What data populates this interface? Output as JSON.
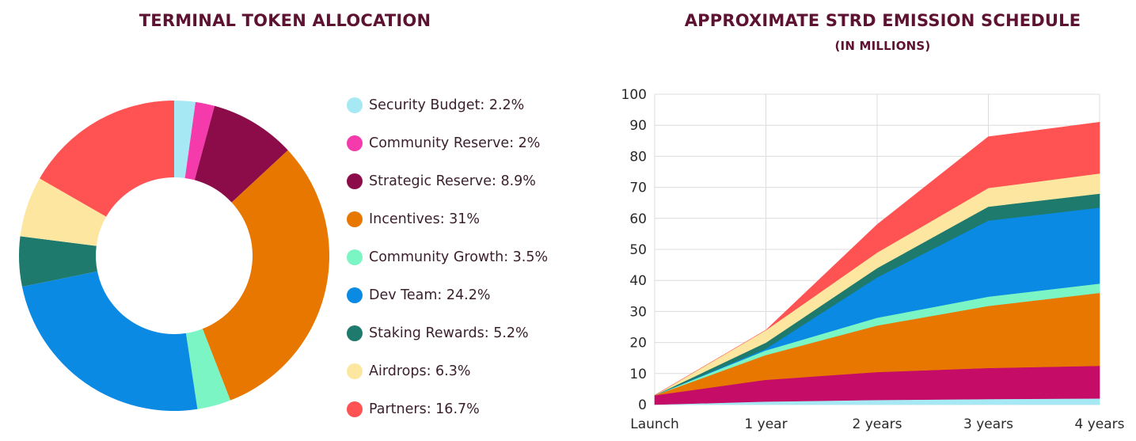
{
  "donut_title": "TERMINAL TOKEN ALLOCATION",
  "area_title": "APPROXIMATE STRD EMISSION SCHEDULE",
  "area_subtitle": "(IN MILLIONS)",
  "legend": [
    {
      "label": "Security Budget: 2.2%",
      "color": "#a6e9f5"
    },
    {
      "label": "Community Reserve: 2%",
      "color": "#f53bab"
    },
    {
      "label": "Strategic Reserve: 8.9%",
      "color": "#8c0c4a"
    },
    {
      "label": "Incentives: 31%",
      "color": "#e87700"
    },
    {
      "label": "Community Growth: 3.5%",
      "color": "#7cf5c4"
    },
    {
      "label": "Dev Team: 24.2%",
      "color": "#0a8ae3"
    },
    {
      "label": "Staking Rewards: 5.2%",
      "color": "#1f7a6e"
    },
    {
      "label": "Airdrops: 6.3%",
      "color": "#fde7a0"
    },
    {
      "label": "Partners: 16.7%",
      "color": "#ff5252"
    }
  ],
  "chart_data": [
    {
      "type": "pie",
      "title": "TERMINAL TOKEN ALLOCATION",
      "slices": [
        {
          "name": "Security Budget",
          "value": 2.2,
          "color": "#a6e9f5"
        },
        {
          "name": "Community Reserve",
          "value": 2,
          "color": "#f53bab"
        },
        {
          "name": "Strategic Reserve",
          "value": 8.9,
          "color": "#8c0c4a"
        },
        {
          "name": "Incentives",
          "value": 31,
          "color": "#e87700"
        },
        {
          "name": "Community Growth",
          "value": 3.5,
          "color": "#7cf5c4"
        },
        {
          "name": "Dev Team",
          "value": 24.2,
          "color": "#0a8ae3"
        },
        {
          "name": "Staking Rewards",
          "value": 5.2,
          "color": "#1f7a6e"
        },
        {
          "name": "Airdrops",
          "value": 6.3,
          "color": "#fde7a0"
        },
        {
          "name": "Partners",
          "value": 16.7,
          "color": "#ff5252"
        }
      ]
    },
    {
      "type": "area",
      "stacked": true,
      "title": "APPROXIMATE STRD EMISSION SCHEDULE",
      "subtitle": "(IN MILLIONS)",
      "categories": [
        "Launch",
        "1 year",
        "2 years",
        "3 years",
        "4 years"
      ],
      "yticks": [
        0,
        10,
        20,
        30,
        40,
        50,
        60,
        70,
        80,
        90,
        100
      ],
      "ylim": [
        0,
        100
      ],
      "grid": true,
      "series": [
        {
          "name": "Security Budget",
          "color": "#a6e9f5",
          "values": [
            0,
            1,
            1.5,
            1.8,
            2
          ]
        },
        {
          "name": "Strategic Reserve",
          "color": "#c50c66",
          "values": [
            3,
            7,
            9,
            10,
            10.5
          ]
        },
        {
          "name": "Incentives",
          "color": "#e87700",
          "values": [
            0,
            8,
            15,
            20,
            23.5
          ]
        },
        {
          "name": "Community Growth",
          "color": "#7cf5c4",
          "values": [
            0,
            1.5,
            2.5,
            3,
            3
          ]
        },
        {
          "name": "Dev Team",
          "color": "#0a8ae3",
          "values": [
            0,
            0.5,
            13,
            24.5,
            24.5
          ]
        },
        {
          "name": "Staking Rewards",
          "color": "#1f7a6e",
          "values": [
            0,
            2,
            3,
            4.5,
            4.5
          ]
        },
        {
          "name": "Airdrops",
          "color": "#fde7a0",
          "values": [
            0,
            4,
            5,
            6,
            6.5
          ]
        },
        {
          "name": "Partners",
          "color": "#ff5252",
          "values": [
            0,
            0,
            9,
            16.5,
            16.5
          ]
        }
      ]
    }
  ]
}
